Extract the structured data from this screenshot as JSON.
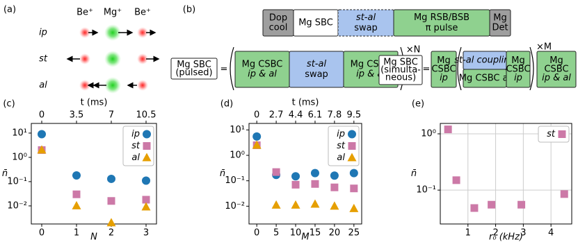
{
  "diagram_a": {
    "label": "(a)",
    "ions": [
      "Be⁺",
      "Mg⁺",
      "Be⁺"
    ],
    "modes": [
      "ip",
      "st",
      "al"
    ]
  },
  "diagram_b": {
    "label": "(b)",
    "sequence": [
      [
        "Dop",
        "cool"
      ],
      [
        "Mg SBC"
      ],
      [
        "st-al",
        "swap"
      ],
      [
        "Mg RSB/BSB",
        "π pulse"
      ],
      [
        "Mg",
        "Det"
      ]
    ],
    "pulsed": {
      "name": [
        "Mg SBC",
        "(pulsed)"
      ],
      "equals": "=",
      "blocks": [
        [
          "Mg CSBC",
          "ip & al"
        ],
        [
          "st-al",
          "swap"
        ],
        [
          "Mg CSBC",
          "ip & al"
        ]
      ],
      "repeat": "×N"
    },
    "simultaneous": {
      "name": [
        "Mg SBC",
        "(simulta-",
        "neous)"
      ],
      "equals": "=",
      "blocks": [
        [
          "Mg",
          "CSBC",
          "ip"
        ],
        [
          "st-al coupling"
        ],
        [
          "Mg CSBC al"
        ],
        [
          "Mg",
          "CSBC",
          "ip"
        ],
        [
          "Mg",
          "CSBC",
          "ip & al"
        ]
      ],
      "repeat": "×M"
    }
  },
  "chart_data": [
    {
      "type": "scatter",
      "label": "(c)",
      "ylabel": "n̄",
      "xlabel": "N",
      "x2label": "t (ms)",
      "yscale": "log",
      "legend": "upper right",
      "xlim": [
        -0.3,
        3.3
      ],
      "xticks": [
        0,
        1,
        2,
        3
      ],
      "x2lim": [
        -1.05,
        11.55
      ],
      "x2ticks": [
        0,
        3.5,
        7,
        10.5
      ],
      "ylim": [
        0.0018,
        25
      ],
      "yticks": [
        {
          "value": 10,
          "label": "10¹"
        },
        {
          "value": 1,
          "label": "10⁰"
        },
        {
          "value": 0.1,
          "label": "10⁻¹"
        },
        {
          "value": 0.01,
          "label": "10⁻²"
        }
      ],
      "x": [
        0,
        1,
        2,
        3
      ],
      "series": [
        {
          "name": "ip",
          "color": "#1f77b4",
          "marker": "circle",
          "values": [
            9,
            0.18,
            0.13,
            0.11
          ]
        },
        {
          "name": "st",
          "color": "#cc79a7",
          "marker": "square",
          "values": [
            2,
            0.03,
            0.016,
            0.018
          ]
        },
        {
          "name": "al",
          "color": "#e69f00",
          "marker": "triangle",
          "values": [
            2,
            0.01,
            0.002,
            0.009
          ]
        }
      ]
    },
    {
      "type": "scatter",
      "label": "(d)",
      "ylabel": "n̄",
      "xlabel": "M",
      "x2label": "t (ms)",
      "yscale": "log",
      "legend": "upper right",
      "xlim": [
        -2,
        27
      ],
      "xticks": [
        0,
        5,
        10,
        15,
        20,
        25
      ],
      "x2ticks": [
        0,
        2.7,
        4.4,
        6.1,
        7.8,
        9.5
      ],
      "ylim": [
        0.002,
        18
      ],
      "yticks": [
        {
          "value": 10,
          "label": "10¹"
        },
        {
          "value": 1,
          "label": "10⁰"
        },
        {
          "value": 0.1,
          "label": "10⁻¹"
        },
        {
          "value": 0.01,
          "label": "10⁻²"
        }
      ],
      "x": [
        0,
        5,
        10,
        15,
        20,
        25
      ],
      "series": [
        {
          "name": "ip",
          "color": "#1f77b4",
          "marker": "circle",
          "values": [
            5.5,
            0.17,
            0.15,
            0.2,
            0.16,
            0.2
          ]
        },
        {
          "name": "st",
          "color": "#cc79a7",
          "marker": "square",
          "values": [
            2.5,
            0.22,
            0.07,
            0.075,
            0.055,
            0.05
          ]
        },
        {
          "name": "al",
          "color": "#e69f00",
          "marker": "triangle",
          "values": [
            2.5,
            0.011,
            0.011,
            0.012,
            0.01,
            0.008
          ]
        }
      ]
    },
    {
      "type": "scatter",
      "label": "(e)",
      "ylabel": "n̄",
      "xlabel": "r₀ (kHz)",
      "yscale": "log",
      "legend": "upper right",
      "grid": true,
      "xlim": [
        0,
        4.75
      ],
      "xticks": [
        1,
        2,
        3,
        4
      ],
      "ylim": [
        0.025,
        1.53
      ],
      "yticks": [
        {
          "value": 1,
          "label": "10⁰"
        },
        {
          "value": 0.1,
          "label": "10⁻¹"
        }
      ],
      "x": [
        0.28,
        0.58,
        1.23,
        1.85,
        2.93,
        4.48
      ],
      "series": [
        {
          "name": "st",
          "color": "#cc79a7",
          "marker": "square",
          "values": [
            1.2,
            0.15,
            0.048,
            0.055,
            0.055,
            0.085
          ]
        }
      ]
    }
  ]
}
